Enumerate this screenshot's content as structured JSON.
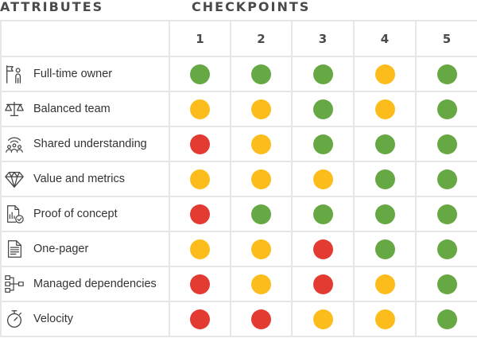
{
  "headers": {
    "attributes": "ATTRIBUTES",
    "checkpoints": "CHECKPOINTS"
  },
  "colors": {
    "green": "#66a844",
    "yellow": "#fcbd1c",
    "red": "#e33a32",
    "grid": "#e6e6e6",
    "icon": "#444444"
  },
  "checkpoints": [
    "1",
    "2",
    "3",
    "4",
    "5"
  ],
  "rows": [
    {
      "label": "Full-time owner",
      "icon": "flag-person-icon",
      "status": [
        "green",
        "green",
        "green",
        "yellow",
        "green"
      ]
    },
    {
      "label": "Balanced team",
      "icon": "scale-icon",
      "status": [
        "yellow",
        "yellow",
        "green",
        "yellow",
        "green"
      ]
    },
    {
      "label": "Shared understanding",
      "icon": "group-signal-icon",
      "status": [
        "red",
        "yellow",
        "green",
        "green",
        "green"
      ]
    },
    {
      "label": "Value and metrics",
      "icon": "diamond-icon",
      "status": [
        "yellow",
        "yellow",
        "yellow",
        "green",
        "green"
      ]
    },
    {
      "label": "Proof of concept",
      "icon": "document-chart-check-icon",
      "status": [
        "red",
        "green",
        "green",
        "green",
        "green"
      ]
    },
    {
      "label": "One-pager",
      "icon": "document-lines-icon",
      "status": [
        "yellow",
        "yellow",
        "red",
        "green",
        "green"
      ]
    },
    {
      "label": "Managed dependencies",
      "icon": "hierarchy-icon",
      "status": [
        "red",
        "yellow",
        "red",
        "yellow",
        "green"
      ]
    },
    {
      "label": "Velocity",
      "icon": "stopwatch-icon",
      "status": [
        "red",
        "red",
        "yellow",
        "yellow",
        "green"
      ]
    }
  ]
}
